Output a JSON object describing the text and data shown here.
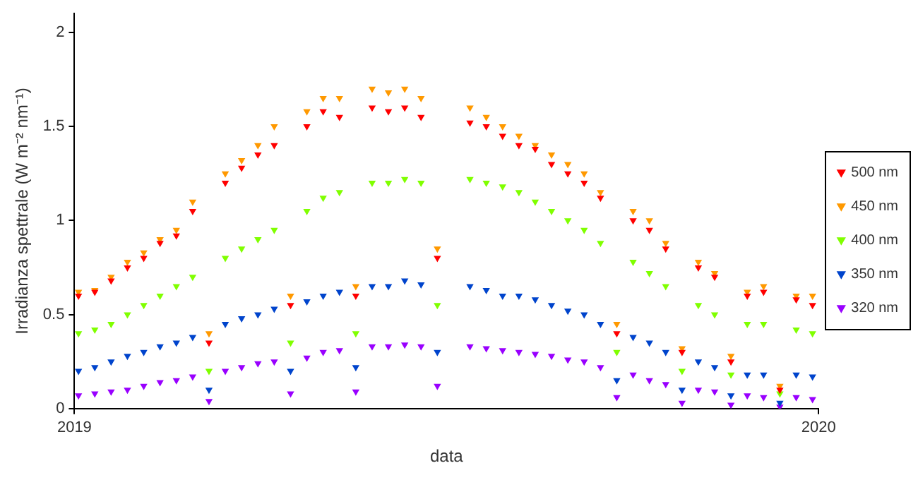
{
  "chart_data": {
    "type": "scatter",
    "xlabel": "data",
    "ylabel": "Irradianza spettrale (W m⁻² nm⁻¹)",
    "x": [
      "2019-01-03",
      "2019-01-11",
      "2019-01-19",
      "2019-01-27",
      "2019-02-04",
      "2019-02-12",
      "2019-02-20",
      "2019-02-28",
      "2019-03-08",
      "2019-03-16",
      "2019-03-24",
      "2019-04-01",
      "2019-04-09",
      "2019-04-17",
      "2019-04-25",
      "2019-05-03",
      "2019-05-11",
      "2019-05-19",
      "2019-05-27",
      "2019-06-04",
      "2019-06-12",
      "2019-06-20",
      "2019-06-28",
      "2019-07-06",
      "2019-07-14",
      "2019-07-22",
      "2019-07-30",
      "2019-08-07",
      "2019-08-15",
      "2019-08-23",
      "2019-08-31",
      "2019-09-08",
      "2019-09-16",
      "2019-09-24",
      "2019-10-02",
      "2019-10-10",
      "2019-10-18",
      "2019-10-26",
      "2019-11-03",
      "2019-11-11",
      "2019-11-19",
      "2019-11-27",
      "2019-12-05",
      "2019-12-13",
      "2019-12-21",
      "2019-12-29"
    ],
    "series": [
      {
        "name": "500 nm",
        "color": "#ff0000",
        "values": [
          0.6,
          0.62,
          0.68,
          0.75,
          0.8,
          0.88,
          0.92,
          1.05,
          0.35,
          1.2,
          1.28,
          1.35,
          1.4,
          0.55,
          1.5,
          1.58,
          1.55,
          0.6,
          1.6,
          1.58,
          1.6,
          1.55,
          0.8,
          null,
          1.52,
          1.5,
          1.45,
          1.4,
          1.38,
          1.3,
          1.25,
          1.2,
          1.12,
          0.4,
          1.0,
          0.95,
          0.85,
          0.3,
          0.75,
          0.7,
          0.25,
          0.6,
          0.62,
          0.1,
          0.58,
          0.55
        ]
      },
      {
        "name": "450 nm",
        "color": "#ff9900",
        "values": [
          0.62,
          0.63,
          0.7,
          0.78,
          0.83,
          0.9,
          0.95,
          1.1,
          0.4,
          1.25,
          1.32,
          1.4,
          1.5,
          0.6,
          1.58,
          1.65,
          1.65,
          0.65,
          1.7,
          1.68,
          1.7,
          1.65,
          0.85,
          null,
          1.6,
          1.55,
          1.5,
          1.45,
          1.4,
          1.35,
          1.3,
          1.25,
          1.15,
          0.45,
          1.05,
          1.0,
          0.88,
          0.32,
          0.78,
          0.72,
          0.28,
          0.62,
          0.65,
          0.12,
          0.6,
          0.6
        ]
      },
      {
        "name": "400 nm",
        "color": "#80ff00",
        "values": [
          0.4,
          0.42,
          0.45,
          0.5,
          0.55,
          0.6,
          0.65,
          0.7,
          0.2,
          0.8,
          0.85,
          0.9,
          0.95,
          0.35,
          1.05,
          1.12,
          1.15,
          0.4,
          1.2,
          1.2,
          1.22,
          1.2,
          0.55,
          null,
          1.22,
          1.2,
          1.18,
          1.15,
          1.1,
          1.05,
          1.0,
          0.95,
          0.88,
          0.3,
          0.78,
          0.72,
          0.65,
          0.2,
          0.55,
          0.5,
          0.18,
          0.45,
          0.45,
          0.08,
          0.42,
          0.4
        ]
      },
      {
        "name": "350 nm",
        "color": "#0044cc",
        "values": [
          0.2,
          0.22,
          0.25,
          0.28,
          0.3,
          0.33,
          0.35,
          0.38,
          0.1,
          0.45,
          0.48,
          0.5,
          0.53,
          0.2,
          0.57,
          0.6,
          0.62,
          0.22,
          0.65,
          0.65,
          0.68,
          0.66,
          0.3,
          null,
          0.65,
          0.63,
          0.6,
          0.6,
          0.58,
          0.55,
          0.52,
          0.5,
          0.45,
          0.15,
          0.38,
          0.35,
          0.3,
          0.1,
          0.25,
          0.22,
          0.07,
          0.18,
          0.18,
          0.03,
          0.18,
          0.17
        ]
      },
      {
        "name": "320 nm",
        "color": "#9900ff",
        "values": [
          0.07,
          0.08,
          0.09,
          0.1,
          0.12,
          0.14,
          0.15,
          0.17,
          0.04,
          0.2,
          0.22,
          0.24,
          0.25,
          0.08,
          0.27,
          0.3,
          0.31,
          0.09,
          0.33,
          0.33,
          0.34,
          0.33,
          0.12,
          null,
          0.33,
          0.32,
          0.31,
          0.3,
          0.29,
          0.28,
          0.26,
          0.25,
          0.22,
          0.06,
          0.18,
          0.15,
          0.13,
          0.03,
          0.1,
          0.09,
          0.02,
          0.07,
          0.06,
          0.01,
          0.06,
          0.05
        ]
      }
    ],
    "xlim": [
      "2019",
      "2020"
    ],
    "xticks": [
      "2019",
      "2020"
    ],
    "ylim": [
      0,
      2.1
    ],
    "yticks": [
      0,
      0.5,
      1,
      1.5,
      2
    ],
    "grid": false,
    "legend": "right",
    "marker": "triangle"
  }
}
